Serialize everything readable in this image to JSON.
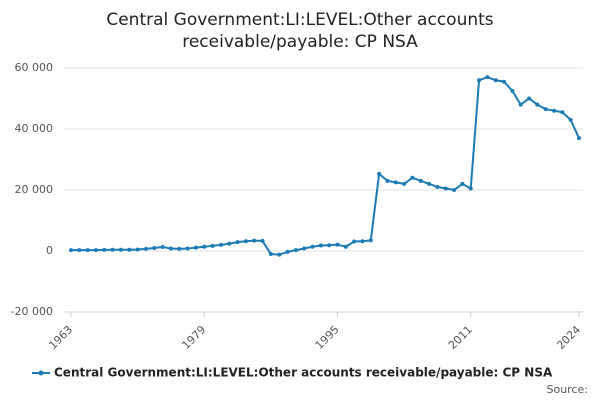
{
  "chart_data": {
    "type": "line",
    "title": "Central Government:LI:LEVEL:Other accounts receivable/payable: CP NSA",
    "source": "Source:",
    "x": [
      1963,
      1964,
      1965,
      1966,
      1967,
      1968,
      1969,
      1970,
      1971,
      1972,
      1973,
      1974,
      1975,
      1976,
      1977,
      1978,
      1979,
      1980,
      1981,
      1982,
      1983,
      1984,
      1985,
      1986,
      1987,
      1988,
      1989,
      1990,
      1991,
      1992,
      1993,
      1994,
      1995,
      1996,
      1997,
      1998,
      1999,
      2000,
      2001,
      2002,
      2003,
      2004,
      2005,
      2006,
      2007,
      2008,
      2009,
      2010,
      2011,
      2012,
      2013,
      2014,
      2015,
      2016,
      2017,
      2018,
      2019,
      2020,
      2021,
      2022,
      2023,
      2024
    ],
    "series": [
      {
        "name": "Central Government:LI:LEVEL:Other accounts receivable/payable: CP NSA",
        "color": "#1a7bb5",
        "values": [
          300,
          300,
          300,
          300,
          350,
          400,
          400,
          400,
          500,
          700,
          1000,
          1300,
          800,
          700,
          800,
          1100,
          1400,
          1700,
          2000,
          2400,
          2900,
          3200,
          3400,
          3300,
          -1000,
          -1200,
          -300,
          300,
          800,
          1400,
          1800,
          1900,
          2100,
          1400,
          3100,
          3200,
          3500,
          25300,
          23000,
          22500,
          22000,
          24000,
          23000,
          22000,
          21000,
          20500,
          20000,
          22000,
          20500,
          56000,
          57000,
          56000,
          55500,
          52500,
          48000,
          50000,
          48000,
          46500,
          46000,
          45500,
          43000,
          37000
        ]
      }
    ],
    "xlim": [
      1963,
      2024
    ],
    "xticks": [
      1963,
      1979,
      1995,
      2011,
      2024
    ],
    "ylim": [
      -20000,
      60000
    ],
    "yticks": [
      {
        "value": -20000,
        "label": "-20 000"
      },
      0,
      {
        "value": 20000,
        "label": "20 000"
      },
      {
        "value": 40000,
        "label": "40 000"
      },
      {
        "value": 60000,
        "label": "60 000"
      }
    ],
    "grid": true
  }
}
